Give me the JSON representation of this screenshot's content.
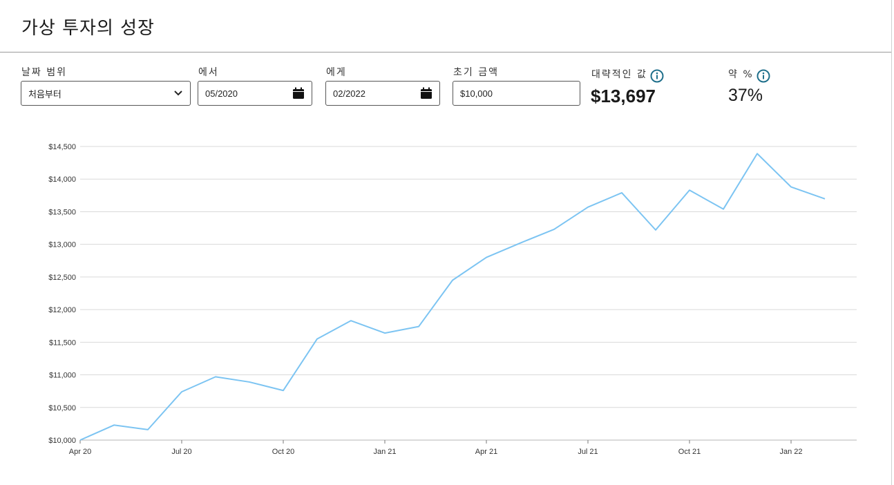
{
  "page": {
    "title": "가상 투자의 성장"
  },
  "filters": {
    "date_range": {
      "label": "날짜 범위",
      "value": "처음부터",
      "icon": "chevron-down-icon"
    },
    "from": {
      "label": "에서",
      "value": "05/2020",
      "icon": "calendar-icon"
    },
    "to": {
      "label": "에게",
      "value": "02/2022",
      "icon": "calendar-icon"
    },
    "initial_amount": {
      "label": "초기 금액",
      "value": "$10,000"
    }
  },
  "stats": {
    "approx_value": {
      "label": "대략적인 값",
      "value": "$13,697",
      "icon": "info-icon"
    },
    "approx_percent": {
      "label": "약 %",
      "value": "37%",
      "icon": "info-icon"
    }
  },
  "colors": {
    "line": "#7cc4f2",
    "grid": "#d9d9d9",
    "info_icon": "#1f6f8b"
  },
  "chart_data": {
    "type": "line",
    "title": "",
    "xlabel": "",
    "ylabel": "",
    "ylim": [
      10000,
      14500
    ],
    "yticks": [
      10000,
      10500,
      11000,
      11500,
      12000,
      12500,
      13000,
      13500,
      14000,
      14500
    ],
    "ytick_labels": [
      "$10,000",
      "$10,500",
      "$11,000",
      "$11,500",
      "$12,000",
      "$12,500",
      "$13,000",
      "$13,500",
      "$14,000",
      "$14,500"
    ],
    "x": [
      "2020-04",
      "2020-05",
      "2020-06",
      "2020-07",
      "2020-08",
      "2020-09",
      "2020-10",
      "2020-11",
      "2020-12",
      "2021-01",
      "2021-02",
      "2021-03",
      "2021-04",
      "2021-05",
      "2021-06",
      "2021-07",
      "2021-08",
      "2021-09",
      "2021-10",
      "2021-11",
      "2021-12",
      "2022-01",
      "2022-02"
    ],
    "xticks": [
      "2020-04",
      "2020-07",
      "2020-10",
      "2021-01",
      "2021-04",
      "2021-07",
      "2021-10",
      "2022-01"
    ],
    "xtick_labels": [
      "Apr 20",
      "Jul 20",
      "Oct 20",
      "Jan 21",
      "Apr 21",
      "Jul 21",
      "Oct 21",
      "Jan 22"
    ],
    "grid": "horizontal",
    "series": [
      {
        "values": [
          10000,
          10230,
          10160,
          10740,
          10970,
          10890,
          10760,
          11550,
          11830,
          11640,
          11740,
          12450,
          12800,
          13020,
          13230,
          13570,
          13790,
          13220,
          13830,
          13540,
          14390,
          13880,
          13697
        ]
      }
    ]
  }
}
